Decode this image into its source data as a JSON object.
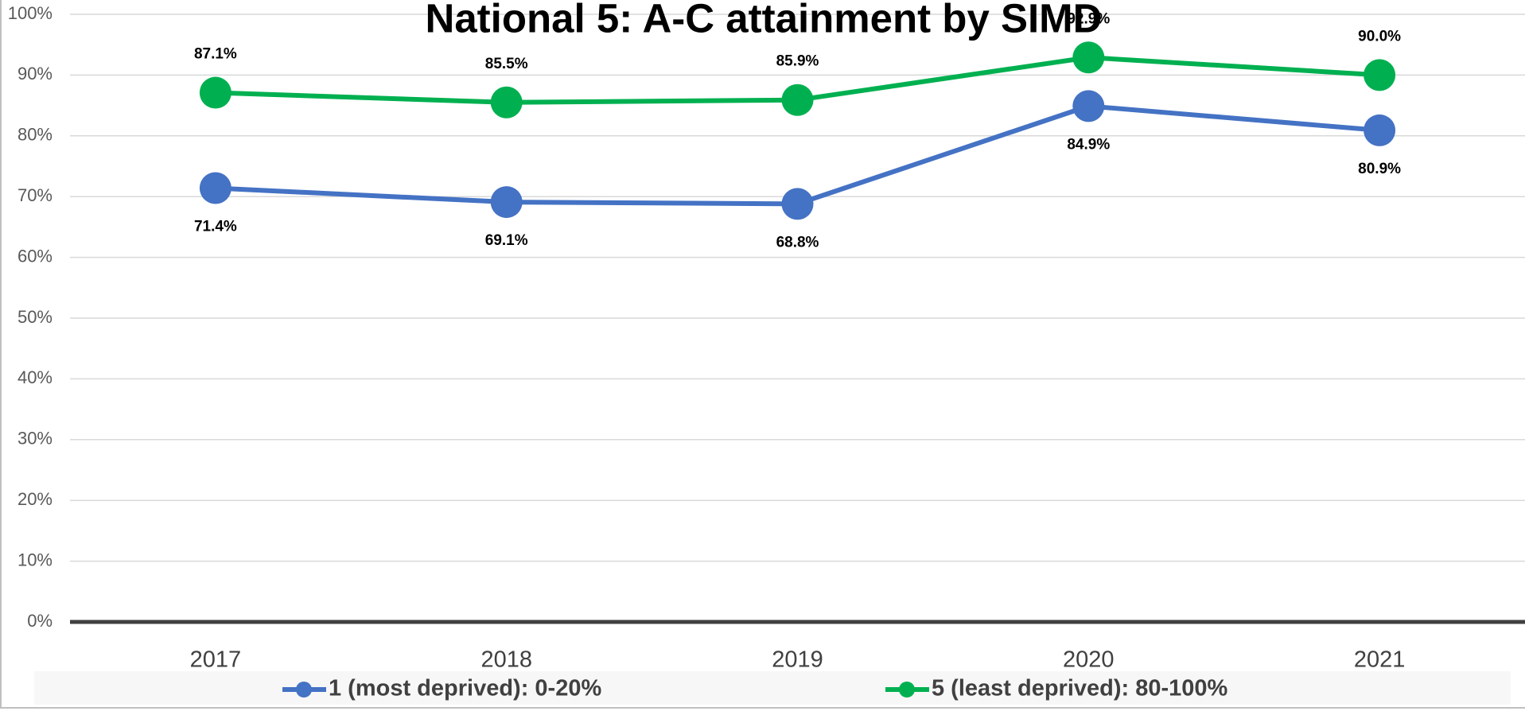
{
  "chart_data": {
    "type": "line",
    "title": "National 5: A-C attainment by SIMD",
    "categories": [
      "2017",
      "2018",
      "2019",
      "2020",
      "2021"
    ],
    "series": [
      {
        "name": "1 (most deprived): 0-20%",
        "color": "#4472c4",
        "values": [
          71.4,
          69.1,
          68.8,
          84.9,
          80.9
        ],
        "value_labels": [
          "71.4%",
          "69.1%",
          "68.8%",
          "84.9%",
          "80.9%"
        ],
        "label_position": "below"
      },
      {
        "name": "5 (least deprived): 80-100%",
        "color": "#00b050",
        "values": [
          87.1,
          85.5,
          85.9,
          92.9,
          90.0
        ],
        "value_labels": [
          "87.1%",
          "85.5%",
          "85.9%",
          "92.9%",
          "90.0%"
        ],
        "label_position": "above"
      }
    ],
    "ylim": [
      0,
      100
    ],
    "yticks": [
      {
        "value": 0,
        "label": "0%"
      },
      {
        "value": 10,
        "label": "10%"
      },
      {
        "value": 20,
        "label": "20%"
      },
      {
        "value": 30,
        "label": "30%"
      },
      {
        "value": 40,
        "label": "40%"
      },
      {
        "value": 50,
        "label": "50%"
      },
      {
        "value": 60,
        "label": "60%"
      },
      {
        "value": 70,
        "label": "70%"
      },
      {
        "value": 80,
        "label": "80%"
      },
      {
        "value": 90,
        "label": "90%"
      },
      {
        "value": 100,
        "label": "100%"
      }
    ],
    "grid": true,
    "legend": "bottom"
  }
}
